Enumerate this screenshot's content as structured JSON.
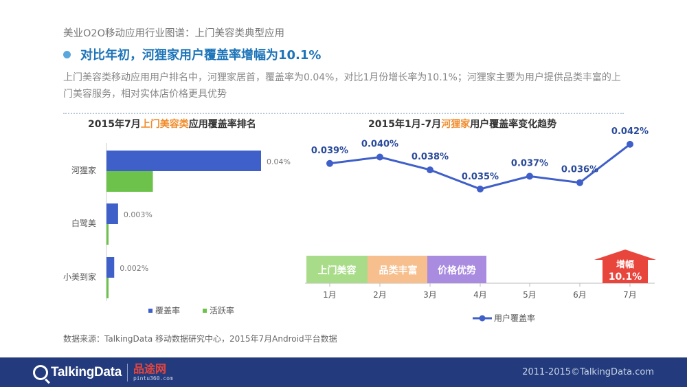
{
  "header": {
    "subtitle": "美业O2O移动应用行业图谱：上门美容类典型应用",
    "heading": "对比年初，河狸家用户覆盖率增幅为10.1%",
    "description": "上门美容类移动应用用户排名中，河狸家居首，覆盖率为0.04%，对比1月份增长率为10.1%；河狸家主要为用户提供品类丰富的上门美容服务，相对实体店价格更具优势"
  },
  "left_chart_title": {
    "prefix": "2015年7月",
    "highlight": "上门美容类",
    "suffix": "应用覆盖率排名"
  },
  "right_chart_title": {
    "prefix": "2015年1月-7月",
    "highlight": "河狸家",
    "suffix": "用户覆盖率变化趋势"
  },
  "colors": {
    "coverage": "#3f5fc9",
    "activity": "#6cc24a",
    "line": "#3f5fc9",
    "label_blue": "#2a4a9a",
    "tag1": "#a9dc89",
    "tag2": "#f7bf8e",
    "tag3": "#a98be0",
    "arrow": "#e8453c"
  },
  "chart_data": [
    {
      "type": "bar",
      "orientation": "horizontal",
      "categories": [
        "河狸家",
        "白鹭美",
        "小美到家"
      ],
      "series": [
        {
          "name": "覆盖率",
          "values": [
            0.04,
            0.003,
            0.002
          ],
          "labels": [
            "0.04%",
            "0.003%",
            "0.002%"
          ]
        },
        {
          "name": "活跃率",
          "values": [
            0.012,
            0.0004,
            0.0004
          ]
        }
      ],
      "xlim": [
        0,
        0.04
      ],
      "legend": "bottom"
    },
    {
      "type": "line",
      "categories": [
        "1月",
        "2月",
        "3月",
        "4月",
        "5月",
        "6月",
        "7月"
      ],
      "series": [
        {
          "name": "用户覆盖率",
          "values": [
            0.039,
            0.04,
            0.038,
            0.035,
            0.037,
            0.036,
            0.042
          ],
          "labels": [
            "0.039%",
            "0.040%",
            "0.038%",
            "0.035%",
            "0.037%",
            "0.036%",
            "0.042%"
          ]
        }
      ],
      "ylim": [
        0.03,
        0.045
      ],
      "legend": "bottom",
      "tags": [
        "上门美容",
        "品类丰富",
        "价格优势"
      ],
      "annotation": {
        "line1": "增幅",
        "line2": "10.1%"
      }
    }
  ],
  "source": "数据来源：TalkingData 移动数据研究中心，2015年7月Android平台数据",
  "footer": {
    "brand": "TalkingData",
    "partner_name": "品途网",
    "partner_url": "pintu360.com",
    "copyright": "2011-2015©TalkingData.com"
  }
}
